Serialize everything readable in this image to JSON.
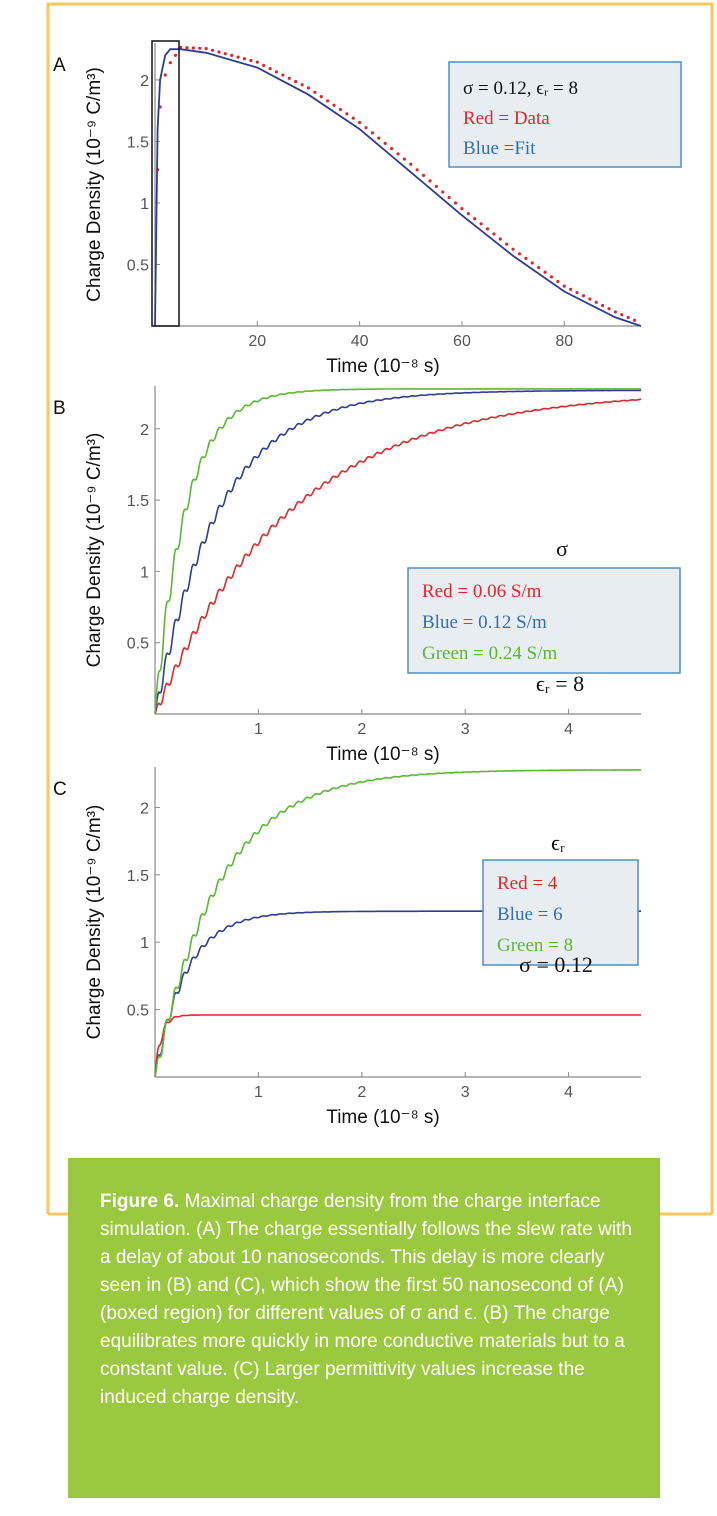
{
  "theme": {
    "frame_color": "#f6c85a",
    "caption_bg": "#9ac93f",
    "caption_text": "#ffffff",
    "axis_color": "#888888",
    "legend_bg": "#e8edf2",
    "legend_border": "#4a90c8",
    "red": "#e2262a",
    "blue": "#2d3b9a",
    "blue_text": "#2e6fb5",
    "green": "#59b92f"
  },
  "caption": {
    "label": "Figure 6.",
    "text": " Maximal charge density from the charge interface simulation. (A) The charge essentially follows the slew rate with a delay of about 10 nanoseconds. This delay is more clearly seen in (B) and (C), which show the first 50 nanosecond of (A) (boxed region) for different values of σ and ϵ. (B) The charge equilibrates more quickly in more conductive materials but to a constant value. (C) Larger permittivity values increase the induced charge density."
  },
  "chart_data": [
    {
      "panel_label": "A",
      "type": "line",
      "ylabel": "Charge Density (10⁻⁹ C/m³)",
      "xlabel": "Time (10⁻⁸ s)",
      "xlim": [
        0,
        95
      ],
      "ylim": [
        0,
        2.3
      ],
      "xticks": [
        "20",
        "40",
        "60",
        "80"
      ],
      "yticks": [
        "0.5",
        "1",
        "1.5",
        "2"
      ],
      "boxed_region": [
        0,
        5
      ],
      "legend": [
        "σ = 0.12, ϵᵣ = 8",
        "Red = Data",
        "Blue =Fit"
      ],
      "series": [
        {
          "name": "Data",
          "style": "dotted",
          "color": "red",
          "x": [
            0.5,
            1,
            2,
            3,
            4,
            5,
            10,
            20,
            30,
            40,
            50,
            60,
            70,
            80,
            90,
            95
          ],
          "y": [
            1.27,
            1.78,
            2.04,
            2.14,
            2.2,
            2.24,
            2.23,
            2.12,
            1.91,
            1.63,
            1.29,
            0.93,
            0.6,
            0.3,
            0.09,
            0.0
          ]
        },
        {
          "name": "Fit",
          "style": "solid",
          "color": "blue",
          "x": [
            0,
            0.5,
            1,
            2,
            3,
            4,
            5,
            10,
            20,
            30,
            40,
            50,
            60,
            70,
            80,
            90,
            95
          ],
          "y": [
            0.0,
            1.6,
            2.0,
            2.2,
            2.25,
            2.25,
            2.25,
            2.22,
            2.1,
            1.88,
            1.6,
            1.25,
            0.9,
            0.57,
            0.28,
            0.07,
            0.0
          ]
        }
      ]
    },
    {
      "panel_label": "B",
      "type": "line",
      "ylabel": "Charge Density (10⁻⁹ C/m³)",
      "xlabel": "Time (10⁻⁸ s)",
      "xlim": [
        0,
        4.7
      ],
      "ylim": [
        0,
        2.3
      ],
      "xticks": [
        "1",
        "2",
        "3",
        "4"
      ],
      "yticks": [
        "0.5",
        "1",
        "1.5",
        "2"
      ],
      "legend_title": "σ",
      "legend": [
        "Red = 0.06 S/m",
        "Blue = 0.12 S/m",
        "Green = 0.24 S/m"
      ],
      "note": "ϵᵣ = 8",
      "series": [
        {
          "name": "0.06 S/m",
          "color": "red",
          "asymptote": 2.27,
          "tau": 1.32,
          "osc": 0.035
        },
        {
          "name": "0.12 S/m",
          "color": "blue",
          "asymptote": 2.27,
          "tau": 0.62,
          "osc": 0.06
        },
        {
          "name": "0.24 S/m",
          "color": "green",
          "asymptote": 2.28,
          "tau": 0.3,
          "osc": 0.1
        }
      ]
    },
    {
      "panel_label": "C",
      "type": "line",
      "ylabel": "Charge Density (10⁻⁹ C/m³)",
      "xlabel": "Time (10⁻⁸ s)",
      "xlim": [
        0,
        4.7
      ],
      "ylim": [
        0,
        2.3
      ],
      "xticks": [
        "1",
        "2",
        "3",
        "4"
      ],
      "yticks": [
        "0.5",
        "1",
        "1.5",
        "2"
      ],
      "legend_title": "ϵᵣ",
      "legend": [
        "Red = 4",
        "Blue = 6",
        "Green = 8"
      ],
      "note": "σ = 0.12",
      "series": [
        {
          "name": "4",
          "color": "red",
          "asymptote": 0.46,
          "tau": 0.06,
          "osc": 0.08
        },
        {
          "name": "6",
          "color": "blue",
          "asymptote": 1.23,
          "tau": 0.3,
          "osc": 0.06
        },
        {
          "name": "8",
          "color": "green",
          "asymptote": 2.28,
          "tau": 0.62,
          "osc": 0.06
        }
      ]
    }
  ]
}
